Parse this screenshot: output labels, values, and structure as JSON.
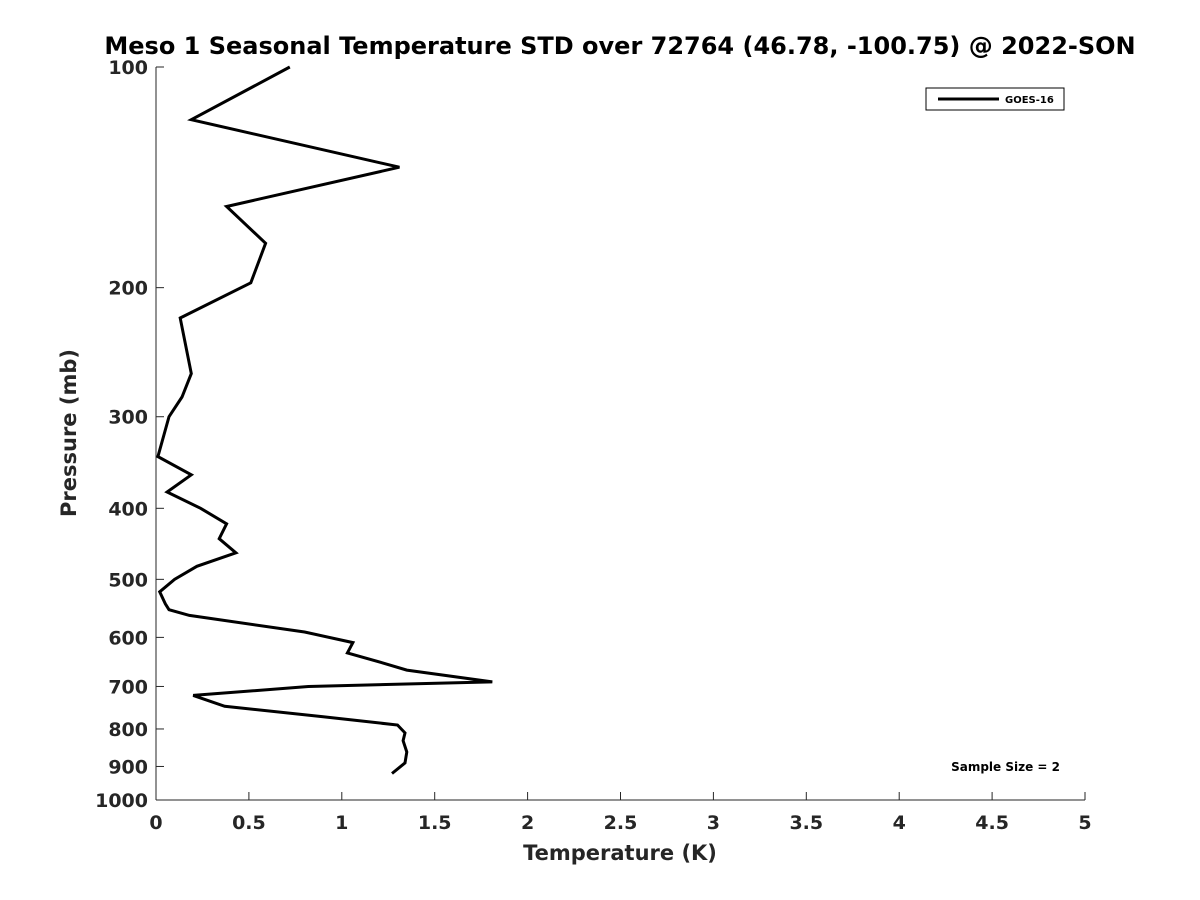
{
  "chart_data": {
    "type": "line",
    "title": "Meso 1 Seasonal Temperature STD over 72764 (46.78, -100.75) @ 2022-SON",
    "xlabel": "Temperature (K)",
    "ylabel": "Pressure (mb)",
    "xlim": [
      0,
      5
    ],
    "ylim": [
      100,
      1000
    ],
    "y_scale": "log",
    "y_reversed": true,
    "x_ticks": [
      0,
      0.5,
      1,
      1.5,
      2,
      2.5,
      3,
      3.5,
      4,
      4.5,
      5
    ],
    "x_tick_labels": [
      "0",
      "0.5",
      "1",
      "1.5",
      "2",
      "2.5",
      "3",
      "3.5",
      "4",
      "4.5",
      "5"
    ],
    "y_ticks": [
      100,
      200,
      300,
      400,
      500,
      600,
      700,
      800,
      900,
      1000
    ],
    "y_tick_labels": [
      "100",
      "200",
      "300",
      "400",
      "500",
      "600",
      "700",
      "800",
      "900",
      "1000"
    ],
    "grid": false,
    "legend_position": "top-right",
    "annotation": "Sample Size = 2",
    "series": [
      {
        "name": "GOES-16",
        "color": "#000000",
        "x": [
          0.72,
          0.19,
          1.31,
          0.38,
          0.59,
          0.51,
          0.13,
          0.19,
          0.14,
          0.07,
          0.01,
          0.19,
          0.06,
          0.24,
          0.38,
          0.34,
          0.43,
          0.22,
          0.1,
          0.02,
          0.05,
          0.07,
          0.18,
          0.8,
          1.06,
          1.03,
          1.22,
          1.35,
          1.81,
          0.82,
          0.2,
          0.37,
          0.9,
          1.3,
          1.34,
          1.33,
          1.35,
          1.34,
          1.27
        ],
        "y": [
          100,
          118,
          137,
          155,
          174,
          197,
          220,
          262,
          282,
          300,
          340,
          360,
          380,
          400,
          420,
          440,
          460,
          480,
          500,
          520,
          540,
          550,
          560,
          590,
          610,
          630,
          650,
          665,
          690,
          700,
          720,
          745,
          770,
          790,
          810,
          830,
          860,
          890,
          920
        ]
      }
    ]
  }
}
